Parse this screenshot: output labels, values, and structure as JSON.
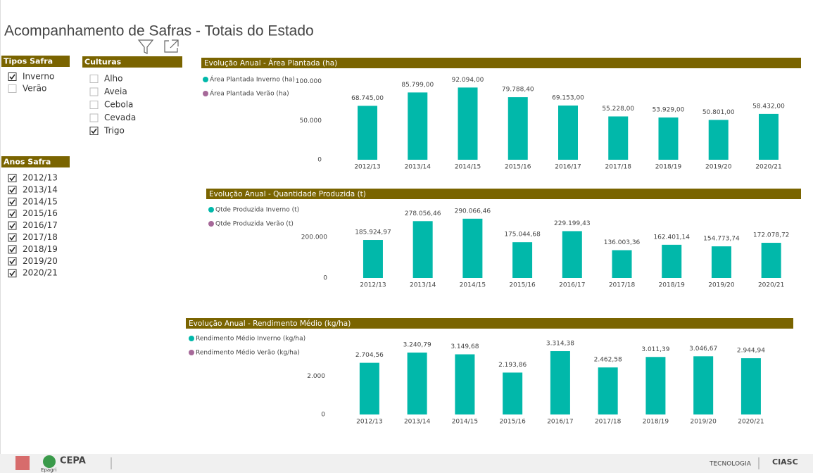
{
  "title": "Acompanhamento de Safras - Totais do Estado",
  "slicers": [
    {
      "title": "Tipos Safra",
      "items": [
        {
          "label": "Inverno",
          "checked": true
        },
        {
          "label": "Verão",
          "checked": false
        }
      ]
    },
    {
      "title": "Culturas",
      "items": [
        {
          "label": "Alho",
          "checked": false
        },
        {
          "label": "Aveia",
          "checked": false
        },
        {
          "label": "Cebola",
          "checked": false
        },
        {
          "label": "Cevada",
          "checked": false
        },
        {
          "label": "Trigo",
          "checked": true
        }
      ]
    },
    {
      "title": "Anos Safra",
      "items": [
        {
          "label": "2012/13",
          "checked": true
        },
        {
          "label": "2013/14",
          "checked": true
        },
        {
          "label": "2014/15",
          "checked": true
        },
        {
          "label": "2015/16",
          "checked": true
        },
        {
          "label": "2016/17",
          "checked": true
        },
        {
          "label": "2017/18",
          "checked": true
        },
        {
          "label": "2018/19",
          "checked": true
        },
        {
          "label": "2019/20",
          "checked": true
        },
        {
          "label": "2020/21",
          "checked": true
        }
      ]
    }
  ],
  "footer": {
    "left_logo": "CEPA",
    "left_logo_sub": "Epagri",
    "right_text": "TECNOLOGIA",
    "right_logo": "CIASC"
  },
  "chart_data": [
    {
      "type": "bar",
      "title": "Evolução Anual - Área Plantada (ha)",
      "categories": [
        "2012/13",
        "2013/14",
        "2014/15",
        "2015/16",
        "2016/17",
        "2017/18",
        "2018/19",
        "2019/20",
        "2020/21"
      ],
      "series": [
        {
          "name": "Área Plantada Inverno (ha)",
          "color": "#01B8AA",
          "values": [
            68745,
            85799,
            92094,
            79788.4,
            69153,
            55228,
            53929,
            50801,
            58432
          ],
          "value_labels": [
            "68.745,00",
            "85.799,00",
            "92.094,00",
            "79.788,40",
            "69.153,00",
            "55.228,00",
            "53.929,00",
            "50.801,00",
            "58.432,00"
          ]
        },
        {
          "name": "Área Plantada Verão (ha)",
          "color": "#A66999",
          "values": [
            null,
            null,
            null,
            null,
            null,
            null,
            null,
            null,
            null
          ]
        }
      ],
      "ylim": [
        0,
        105000
      ],
      "yticks": [
        0,
        {
          "value": 50000,
          "label": "50.000"
        },
        {
          "value": 100000,
          "label": "100.000"
        }
      ],
      "grid": false,
      "legend": "top-left"
    },
    {
      "type": "bar",
      "title": "Evolução Anual - Quantidade Produzida (t)",
      "categories": [
        "2012/13",
        "2013/14",
        "2014/15",
        "2015/16",
        "2016/17",
        "2017/18",
        "2018/19",
        "2019/20",
        "2020/21"
      ],
      "series": [
        {
          "name": "Qtde Produzida Inverno (t)",
          "color": "#01B8AA",
          "values": [
            185924.97,
            278056.46,
            290066.46,
            175044.68,
            229199.43,
            136003.36,
            162401.14,
            154773.74,
            172078.72
          ],
          "value_labels": [
            "185.924,97",
            "278.056,46",
            "290.066,46",
            "175.044,68",
            "229.199,43",
            "136.003,36",
            "162.401,14",
            "154.773,74",
            "172.078,72"
          ]
        },
        {
          "name": "Qtde Produzida Verão (t)",
          "color": "#A66999",
          "values": [
            null,
            null,
            null,
            null,
            null,
            null,
            null,
            null,
            null
          ]
        }
      ],
      "ylim": [
        0,
        310000
      ],
      "yticks": [
        0,
        {
          "value": 200000,
          "label": "200.000"
        }
      ],
      "grid": false,
      "legend": "top-left"
    },
    {
      "type": "bar",
      "title": "Evolução Anual - Rendimento Médio (kg/ha)",
      "categories": [
        "2012/13",
        "2013/14",
        "2014/15",
        "2015/16",
        "2016/17",
        "2017/18",
        "2018/19",
        "2019/20",
        "2020/21"
      ],
      "series": [
        {
          "name": "Rendimento Médio Inverno (kg/ha)",
          "color": "#01B8AA",
          "values": [
            2704.56,
            3240.79,
            3149.68,
            2193.86,
            3314.38,
            2462.58,
            3011.39,
            3046.67,
            2944.94
          ],
          "value_labels": [
            "2.704,56",
            "3.240,79",
            "3.149,68",
            "2.193,86",
            "3.314,38",
            "2.462,58",
            "3.011,39",
            "3.046,67",
            "2.944,94"
          ]
        },
        {
          "name": "Rendimento Médio Verão (kg/ha)",
          "color": "#A66999",
          "values": [
            null,
            null,
            null,
            null,
            null,
            null,
            null,
            null,
            null
          ]
        }
      ],
      "ylim": [
        0,
        3500
      ],
      "yticks": [
        0,
        {
          "value": 2000,
          "label": "2.000"
        }
      ],
      "grid": false,
      "legend": "top-left"
    }
  ]
}
